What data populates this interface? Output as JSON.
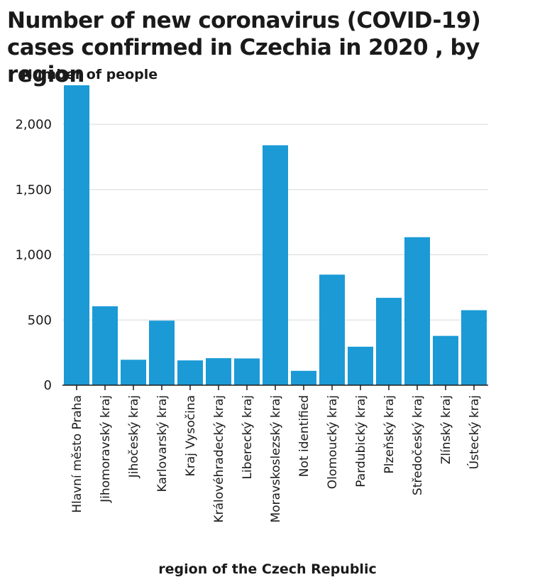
{
  "chart_data": {
    "type": "bar",
    "title": "Number of new coronavirus (COVID-19) cases confirmed in Czechia in 2020 , by region",
    "ylabel": "Number of people",
    "xlabel": "region of the Czech Republic",
    "ylim": [
      0,
      2300
    ],
    "yticks": [
      0,
      500,
      1000,
      1500,
      2000
    ],
    "ytick_labels": [
      "0",
      "500",
      "1,000",
      "1,500",
      "2,000"
    ],
    "grid": true,
    "bar_color": "#1b9ad6",
    "categories": [
      "Hlavní město Praha",
      "Jihomoravský kraj",
      "Jihočeský kraj",
      "Karlovarský kraj",
      "Kraj Vysočina",
      "Královéhradecký kraj",
      "Liberecký kraj",
      "Moravskoslezský kraj",
      "Not identified",
      "Olomoucký kraj",
      "Pardubický kraj",
      "Plzeňský kraj",
      "Středočeský kraj",
      "Zlínský kraj",
      "Ústecký kraj"
    ],
    "values": [
      2300,
      605,
      195,
      495,
      190,
      207,
      205,
      1840,
      110,
      848,
      295,
      670,
      1135,
      378,
      575
    ]
  }
}
